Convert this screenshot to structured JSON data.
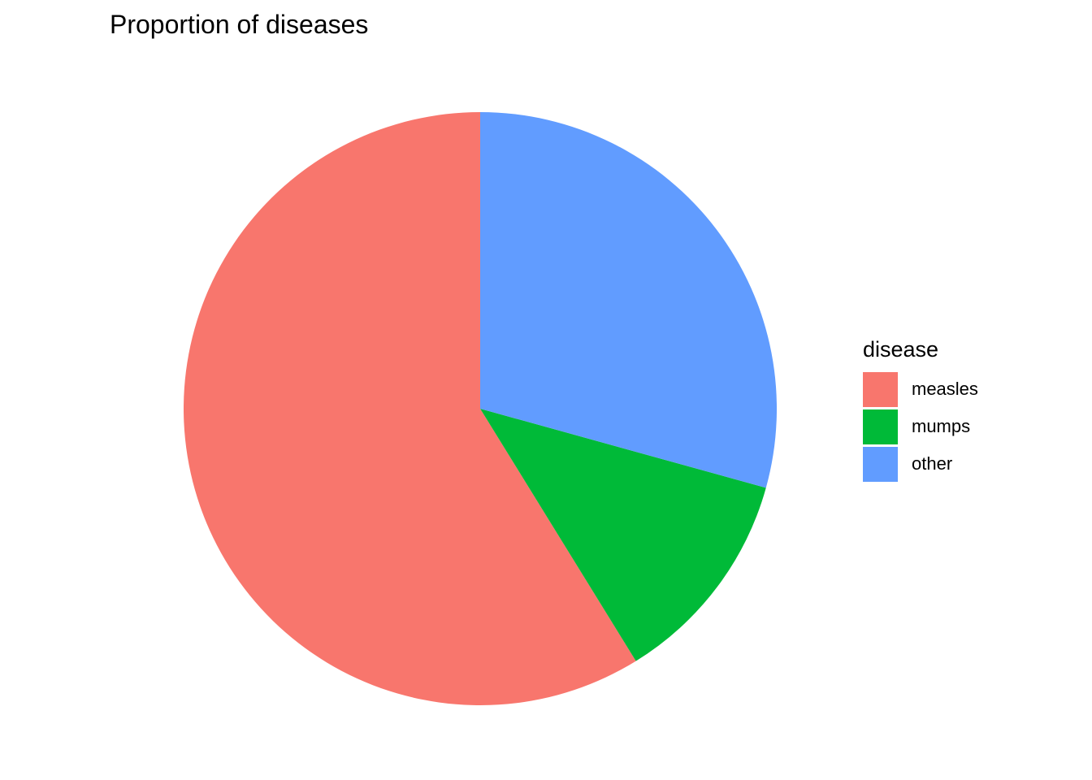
{
  "chart_data": {
    "type": "pie",
    "title": "Proportion of diseases",
    "legend_title": "disease",
    "legend_position": "right",
    "categories": [
      "measles",
      "mumps",
      "other"
    ],
    "values": [
      58.8,
      11.9,
      29.3
    ],
    "unit": "percent",
    "colors": [
      "#F8766D",
      "#00BA38",
      "#619CFF"
    ],
    "start": "12 o'clock",
    "direction": "counter-clockwise",
    "grid": false
  }
}
